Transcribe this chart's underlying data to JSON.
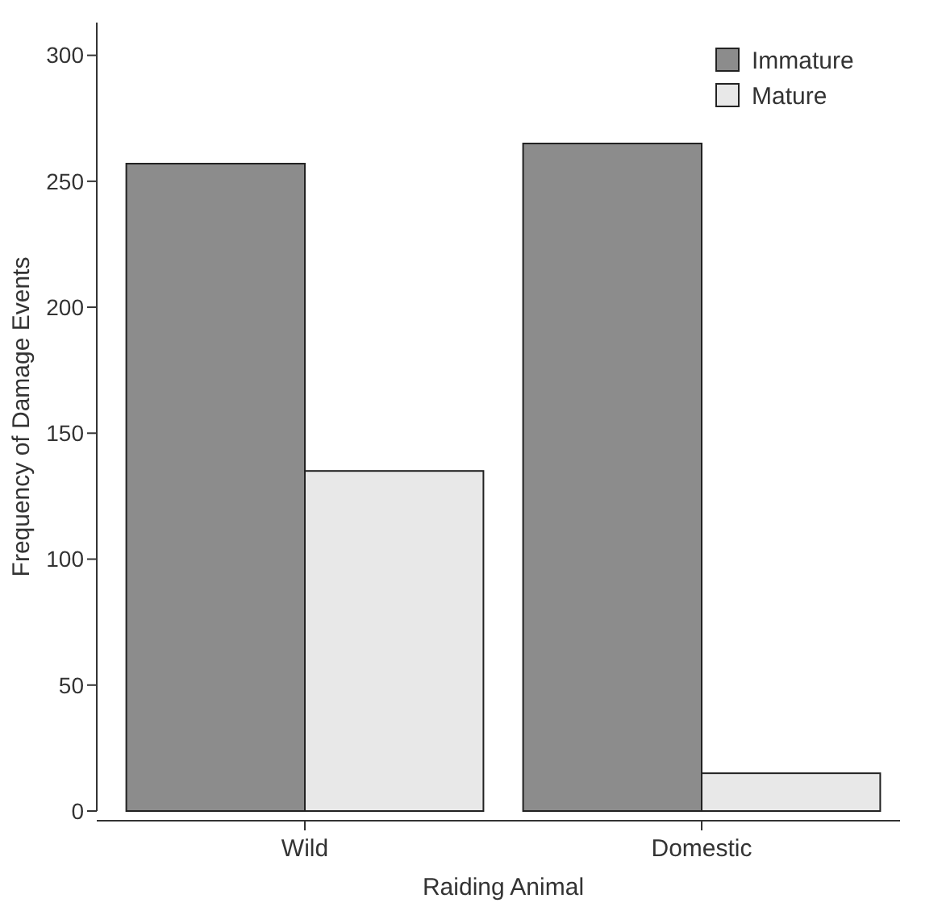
{
  "chart_data": {
    "type": "bar",
    "xlabel": "Raiding Animal",
    "ylabel": "Frequency of Damage Events",
    "categories": [
      "Wild",
      "Domestic"
    ],
    "series": [
      {
        "name": "Immature",
        "color": "#8c8c8c",
        "values": [
          257,
          265
        ]
      },
      {
        "name": "Mature",
        "color": "#e8e8e8",
        "values": [
          135,
          15
        ]
      }
    ],
    "ylim": [
      0,
      313
    ],
    "yticks": [
      0,
      50,
      100,
      150,
      200,
      250,
      300
    ],
    "grid": false,
    "legend": "top right"
  }
}
